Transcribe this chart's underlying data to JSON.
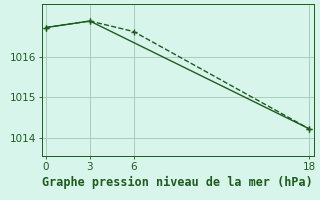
{
  "bg_color": "#d8f5ec",
  "line1_x": [
    0,
    3,
    18
  ],
  "line1_y": [
    1016.72,
    1016.88,
    1014.22
  ],
  "line2_x": [
    0,
    3,
    6,
    18
  ],
  "line2_y": [
    1016.72,
    1016.88,
    1016.62,
    1014.22
  ],
  "line_color": "#1e5c1e",
  "marker": "+",
  "xlabel": "Graphe pression niveau de la mer (hPa)",
  "xticks": [
    0,
    3,
    6,
    18
  ],
  "yticks": [
    1014,
    1015,
    1016
  ],
  "xlim": [
    -0.3,
    18.3
  ],
  "ylim": [
    1013.55,
    1017.3
  ],
  "grid_color": "#a0c8b0",
  "xlabel_fontsize": 8.5,
  "tick_fontsize": 7.5,
  "line_width": 1.0,
  "marker_size": 4
}
